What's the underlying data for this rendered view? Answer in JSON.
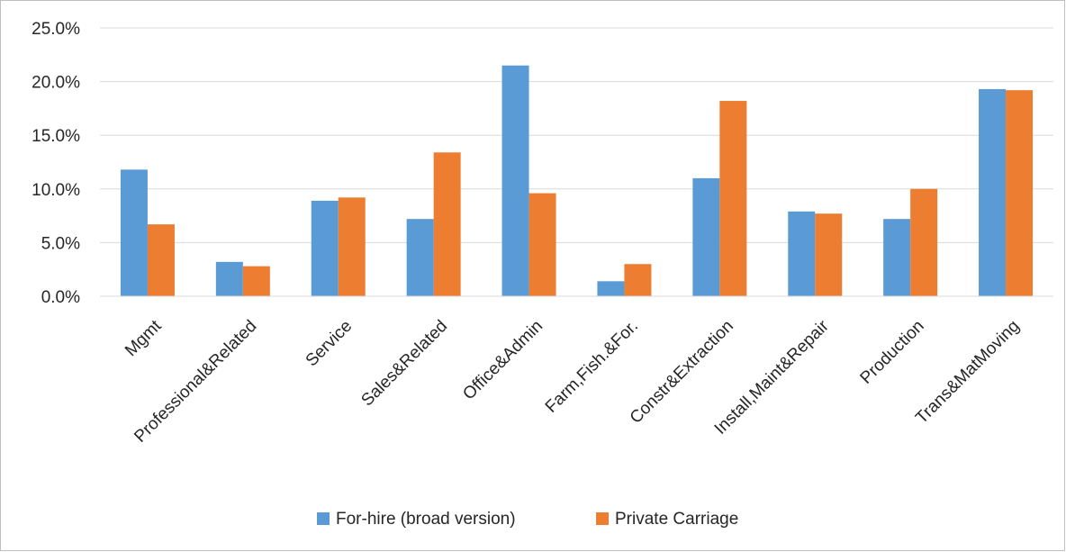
{
  "chart_data": {
    "type": "bar",
    "categories": [
      "Mgmt",
      "Professional&Related",
      "Service",
      "Sales&Related",
      "Office&Admin",
      "Farm,Fish.&For.",
      "Constr&Extraction",
      "Install,Maint&Repair",
      "Production",
      "Trans&MatMoving"
    ],
    "series": [
      {
        "name": "For-hire (broad version)",
        "color": "#5b9bd5",
        "values": [
          11.8,
          3.2,
          8.9,
          7.2,
          21.5,
          1.4,
          11.0,
          7.9,
          7.2,
          19.3
        ]
      },
      {
        "name": "Private Carriage",
        "color": "#ed7d31",
        "values": [
          6.7,
          2.8,
          9.2,
          13.4,
          9.6,
          3.0,
          18.2,
          7.7,
          10.0,
          19.2
        ]
      }
    ],
    "yticks": [
      "0.0%",
      "5.0%",
      "10.0%",
      "15.0%",
      "20.0%",
      "25.0%"
    ],
    "ylim": [
      0,
      25
    ],
    "ytick_step": 5,
    "grid": true,
    "gridline_color": "#d9d9d9",
    "legend": "bottom",
    "title": "",
    "xlabel": "",
    "ylabel": ""
  }
}
